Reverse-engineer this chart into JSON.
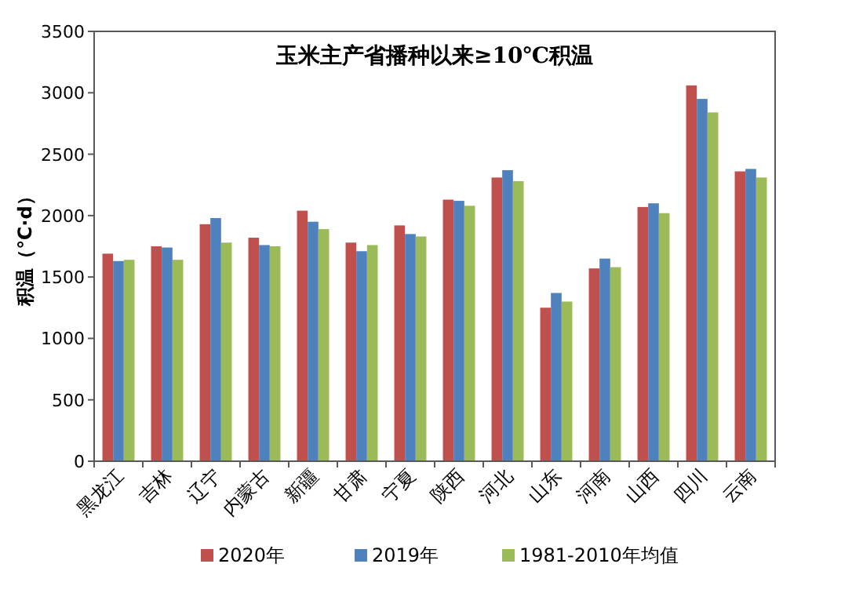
{
  "chart_data": {
    "type": "bar",
    "title": "玉米主产省播种以来≥10℃积温",
    "ylabel": "积温（℃·d）",
    "categories": [
      "黑龙江",
      "吉林",
      "辽宁",
      "内蒙古",
      "新疆",
      "甘肃",
      "宁夏",
      "陕西",
      "河北",
      "山东",
      "河南",
      "山西",
      "四川",
      "云南"
    ],
    "series": [
      {
        "name": "2020年",
        "color": "#c0504d",
        "values": [
          1690,
          1750,
          1930,
          1820,
          2040,
          1780,
          1920,
          2130,
          2310,
          1250,
          1570,
          2070,
          3060,
          2360
        ]
      },
      {
        "name": "2019年",
        "color": "#4f81bd",
        "values": [
          1630,
          1740,
          1980,
          1760,
          1950,
          1710,
          1850,
          2120,
          2370,
          1370,
          1650,
          2100,
          2950,
          2380
        ]
      },
      {
        "name": "1981-2010年均值",
        "color": "#9bbb59",
        "values": [
          1640,
          1640,
          1780,
          1750,
          1890,
          1760,
          1830,
          2080,
          2280,
          1300,
          1580,
          2020,
          2840,
          2310
        ]
      }
    ],
    "ylim": [
      0,
      3500
    ],
    "yticks": [
      0,
      500,
      1000,
      1500,
      2000,
      2500,
      3000,
      3500
    ],
    "legend": "bottom"
  }
}
